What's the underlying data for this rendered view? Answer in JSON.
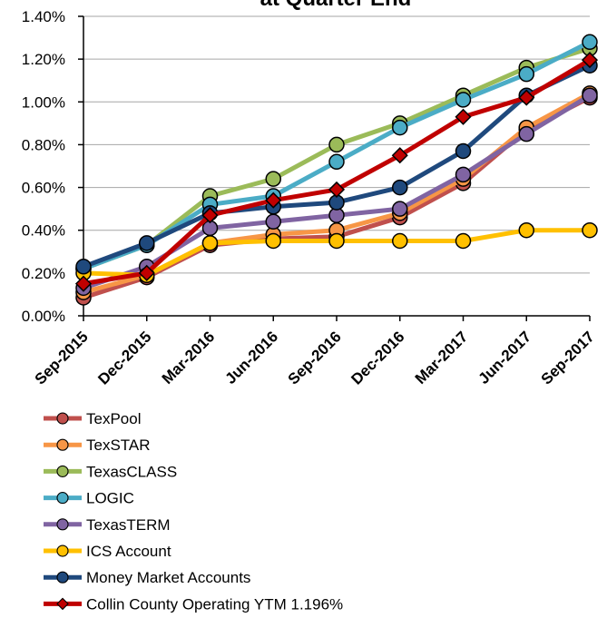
{
  "chart_data": {
    "type": "line",
    "title": "at Quarter End",
    "categories": [
      "Sep-2015",
      "Dec-2015",
      "Mar-2016",
      "Jun-2016",
      "Sep-2016",
      "Dec-2016",
      "Mar-2017",
      "Jun-2017",
      "Sep-2017"
    ],
    "series": [
      {
        "name": "TexPool",
        "color": "#c0504d",
        "marker": "circle",
        "values": [
          0.085,
          0.18,
          0.33,
          0.36,
          0.37,
          0.46,
          0.62,
          0.87,
          1.02
        ]
      },
      {
        "name": "TexSTAR",
        "color": "#f79646",
        "marker": "circle",
        "values": [
          0.11,
          0.19,
          0.34,
          0.38,
          0.4,
          0.48,
          0.64,
          0.88,
          1.04
        ]
      },
      {
        "name": "TexasCLASS",
        "color": "#9bbb59",
        "marker": "circle",
        "values": [
          0.22,
          0.33,
          0.56,
          0.64,
          0.8,
          0.9,
          1.03,
          1.16,
          1.25
        ]
      },
      {
        "name": "LOGIC",
        "color": "#4bacc6",
        "marker": "circle",
        "values": [
          0.22,
          0.33,
          0.52,
          0.56,
          0.72,
          0.88,
          1.01,
          1.13,
          1.28
        ]
      },
      {
        "name": "TexasTERM",
        "color": "#8064a2",
        "marker": "circle",
        "values": [
          0.13,
          0.23,
          0.41,
          0.44,
          0.47,
          0.5,
          0.66,
          0.85,
          1.03
        ]
      },
      {
        "name": "ICS Account",
        "color": "#ffc000",
        "marker": "circle",
        "values": [
          0.2,
          0.19,
          0.34,
          0.35,
          0.35,
          0.35,
          0.35,
          0.4,
          0.4
        ]
      },
      {
        "name": "Money Market Accounts",
        "color": "#1f497d",
        "marker": "circle",
        "values": [
          0.23,
          0.34,
          0.48,
          0.51,
          0.53,
          0.6,
          0.77,
          1.03,
          1.17
        ]
      },
      {
        "name": "Collin County Operating YTM 1.196%",
        "color": "#c00000",
        "marker": "diamond",
        "values": [
          0.15,
          0.2,
          0.47,
          0.54,
          0.59,
          0.75,
          0.93,
          1.02,
          1.196
        ]
      }
    ],
    "ylim": [
      0,
      1.4
    ],
    "yticks": [
      {
        "value": 0,
        "label": "0.00%"
      },
      {
        "value": 0.2,
        "label": "0.20%"
      },
      {
        "value": 0.4,
        "label": "0.40%"
      },
      {
        "value": 0.6,
        "label": "0.60%"
      },
      {
        "value": 0.8,
        "label": "0.80%"
      },
      {
        "value": 1.0,
        "label": "1.00%"
      },
      {
        "value": 1.2,
        "label": "1.20%"
      },
      {
        "value": 1.4,
        "label": "1.40%"
      }
    ],
    "grid": true,
    "legend": "bottom"
  }
}
